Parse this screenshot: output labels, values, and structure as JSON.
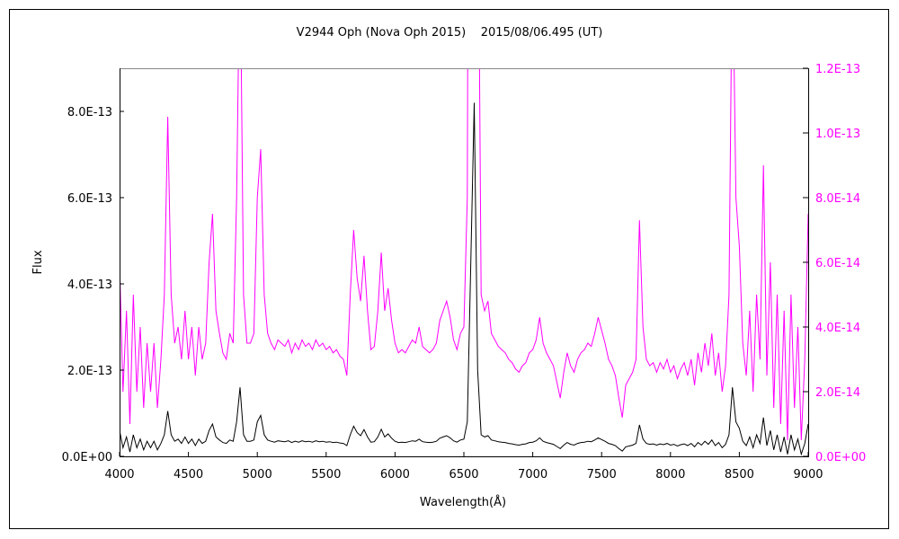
{
  "chart_data": {
    "type": "line",
    "title": "V2944 Oph (Nova Oph 2015)    2015/08/06.495 (UT)",
    "xlabel": "Wavelength(Å)",
    "ylabel": "Flux",
    "xlim": [
      4000,
      9000
    ],
    "ylim_left": [
      0,
      9e-13
    ],
    "ylim_right": [
      0,
      1.2e-13
    ],
    "x_ticks": [
      "4000",
      "4500",
      "5000",
      "5500",
      "6000",
      "6500",
      "7000",
      "7500",
      "8000",
      "8500",
      "9000"
    ],
    "y_ticks_left": [
      "0.0E+00",
      "2.0E-13",
      "4.0E-13",
      "6.0E-13",
      "8.0E-13"
    ],
    "y_ticks_right": [
      "0.0E+00",
      "2.0E-14",
      "4.0E-14",
      "6.0E-14",
      "8.0E-14",
      "1.0E-13",
      "1.2E-13"
    ],
    "grid": false,
    "colors": {
      "left_axis_series": "#000000",
      "right_axis_series": "#ff00ff"
    },
    "x_start": 4000,
    "x_step": 25,
    "series": [
      {
        "axis": "left",
        "color": "#000000",
        "values": "flux"
      },
      {
        "axis": "right",
        "color": "#ff00ff",
        "values": "flux"
      }
    ],
    "flux": [
      6e-14,
      2e-14,
      4.5e-14,
      1e-14,
      5e-14,
      2e-14,
      4e-14,
      1.5e-14,
      3.5e-14,
      2e-14,
      3.5e-14,
      1.5e-14,
      3e-14,
      5e-14,
      1.05e-13,
      5e-14,
      3.5e-14,
      4e-14,
      3e-14,
      4.5e-14,
      3e-14,
      4e-14,
      2.5e-14,
      4e-14,
      3e-14,
      3.5e-14,
      6e-14,
      7.5e-14,
      4.5e-14,
      3.8e-14,
      3.2e-14,
      3e-14,
      3.8e-14,
      3.5e-14,
      8e-14,
      1.6e-13,
      5e-14,
      3.5e-14,
      3.5e-14,
      3.8e-14,
      8e-14,
      9.5e-14,
      5e-14,
      3.8e-14,
      3.5e-14,
      3.3e-14,
      3.6e-14,
      3.5e-14,
      3.4e-14,
      3.6e-14,
      3.2e-14,
      3.5e-14,
      3.3e-14,
      3.6e-14,
      3.4e-14,
      3.5e-14,
      3.3e-14,
      3.6e-14,
      3.4e-14,
      3.5e-14,
      3.3e-14,
      3.4e-14,
      3.2e-14,
      3.3e-14,
      3.1e-14,
      3e-14,
      2.5e-14,
      5e-14,
      7e-14,
      5.5e-14,
      4.8e-14,
      6.2e-14,
      4.5e-14,
      3.3e-14,
      3.4e-14,
      4.5e-14,
      6.3e-14,
      4.5e-14,
      5.2e-14,
      4.2e-14,
      3.5e-14,
      3.2e-14,
      3.3e-14,
      3.2e-14,
      3.4e-14,
      3.6e-14,
      3.5e-14,
      4e-14,
      3.4e-14,
      3.3e-14,
      3.2e-14,
      3.3e-14,
      3.5e-14,
      4.2e-14,
      4.5e-14,
      4.8e-14,
      4.3e-14,
      3.6e-14,
      3.3e-14,
      3.8e-14,
      4e-14,
      8e-14,
      4.5e-13,
      8.2e-13,
      2e-13,
      5e-14,
      4.5e-14,
      4.8e-14,
      3.8e-14,
      3.6e-14,
      3.4e-14,
      3.3e-14,
      3.2e-14,
      3e-14,
      2.9e-14,
      2.7e-14,
      2.6e-14,
      2.8e-14,
      2.9e-14,
      3.2e-14,
      3.3e-14,
      3.6e-14,
      4.3e-14,
      3.5e-14,
      3.2e-14,
      3e-14,
      2.8e-14,
      2.3e-14,
      1.8e-14,
      2.6e-14,
      3.2e-14,
      2.8e-14,
      2.6e-14,
      3e-14,
      3.2e-14,
      3.3e-14,
      3.5e-14,
      3.4e-14,
      3.8e-14,
      4.3e-14,
      3.9e-14,
      3.5e-14,
      3e-14,
      2.8e-14,
      2.5e-14,
      1.8e-14,
      1.2e-14,
      2.2e-14,
      2.4e-14,
      2.6e-14,
      3e-14,
      7.3e-14,
      4e-14,
      3e-14,
      2.8e-14,
      2.9e-14,
      2.6e-14,
      2.9e-14,
      2.7e-14,
      3e-14,
      2.6e-14,
      2.8e-14,
      2.4e-14,
      2.7e-14,
      2.9e-14,
      2.5e-14,
      3e-14,
      2.2e-14,
      3.2e-14,
      2.6e-14,
      3.5e-14,
      2.8e-14,
      3.8e-14,
      2.5e-14,
      3.2e-14,
      2e-14,
      2.8e-14,
      5e-14,
      1.6e-13,
      8e-14,
      6.5e-14,
      3.5e-14,
      2.5e-14,
      4.5e-14,
      2e-14,
      5e-14,
      3e-14,
      9e-14,
      2.5e-14,
      6e-14,
      1.5e-14,
      5e-14,
      1e-14,
      4.5e-14,
      5e-15,
      5e-14,
      1.5e-14,
      4e-14,
      5e-15,
      3e-14,
      7.5e-14
    ]
  }
}
